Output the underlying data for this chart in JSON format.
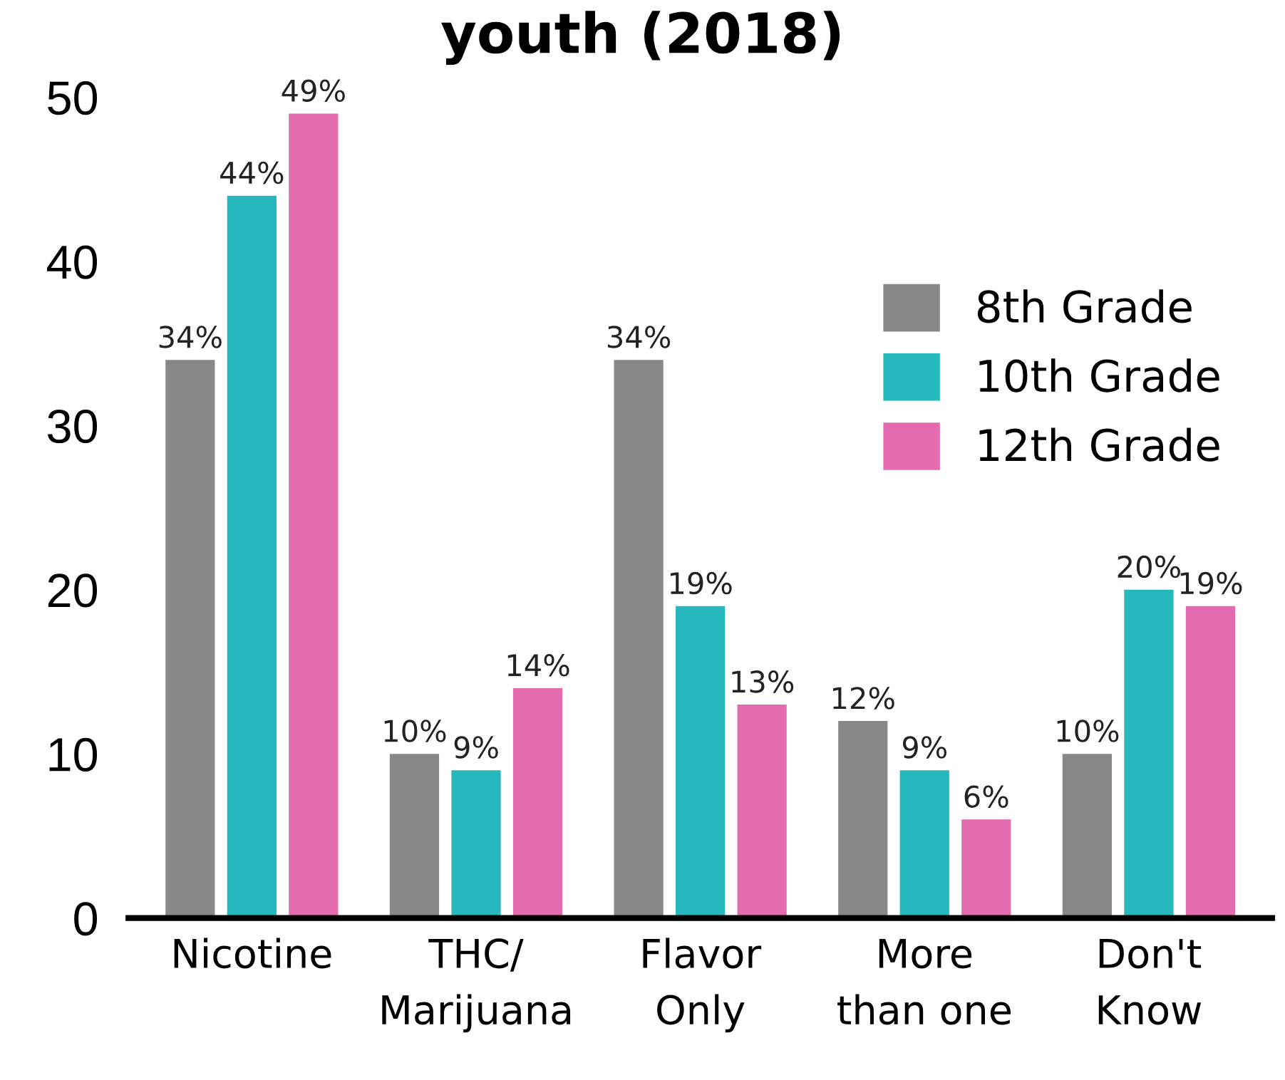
{
  "chart_data": {
    "type": "bar",
    "title": "youth (2018)",
    "categories": [
      "Nicotine",
      "THC/\nMarijuana",
      "Flavor\nOnly",
      "More\nthan one",
      "Don't\nKnow"
    ],
    "series": [
      {
        "name": "8th Grade",
        "color": "#888888",
        "values": [
          34,
          10,
          34,
          12,
          10
        ],
        "value_labels": [
          "34%",
          "10%",
          "34%",
          "12%",
          "10%"
        ]
      },
      {
        "name": "10th Grade",
        "color": "#25b8bd",
        "values": [
          44,
          9,
          19,
          9,
          20
        ],
        "value_labels": [
          "44%",
          "9%",
          "19%",
          "9%",
          "20%"
        ]
      },
      {
        "name": "12th Grade",
        "color": "#e56bb1",
        "values": [
          49,
          14,
          13,
          6,
          19
        ],
        "value_labels": [
          "49%",
          "14%",
          "13%",
          "6%",
          "19%"
        ]
      }
    ],
    "ylim": [
      0,
      50
    ],
    "yticks": [
      0,
      10,
      20,
      30,
      40,
      50
    ],
    "grid": false,
    "legend": "top right"
  }
}
